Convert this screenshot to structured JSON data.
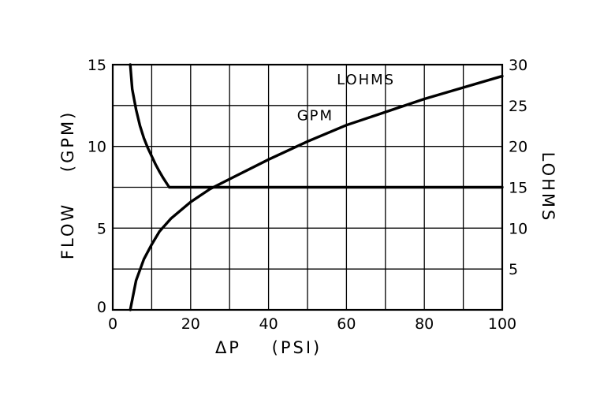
{
  "chart_data": {
    "type": "line",
    "xlabel": "ΔP    (PSI)",
    "ylabel": "FLOW    (GPM)",
    "y2label": "LOHMS",
    "xlim": [
      0,
      100
    ],
    "ylim": [
      0,
      15
    ],
    "y2lim": [
      0,
      30
    ],
    "x_ticks": [
      0,
      20,
      40,
      60,
      80,
      100
    ],
    "x_grid_step": 10,
    "y_ticks": [
      0,
      5,
      10,
      15
    ],
    "y_grid_step": 2.5,
    "y2_ticks": [
      5,
      10,
      15,
      20,
      25,
      30
    ],
    "grid": true,
    "series": [
      {
        "name": "GPM",
        "axis": "left",
        "x": [
          4.5,
          6,
          8,
          10,
          12,
          15,
          20,
          25,
          30,
          40,
          50,
          60,
          70,
          80,
          90,
          100
        ],
        "y": [
          0,
          1.8,
          3.1,
          4.0,
          4.8,
          5.6,
          6.6,
          7.4,
          8.0,
          9.2,
          10.3,
          11.3,
          12.1,
          12.9,
          13.6,
          14.3
        ]
      },
      {
        "name": "LOHMS",
        "axis": "right",
        "x": [
          4.5,
          5,
          6,
          7,
          8,
          9,
          10,
          11,
          12,
          13,
          14.5,
          20,
          40,
          60,
          80,
          100
        ],
        "y": [
          30,
          27,
          24.5,
          22.5,
          21,
          19.8,
          18.8,
          17.8,
          16.9,
          16.1,
          15,
          15,
          15,
          15,
          15,
          15
        ]
      }
    ],
    "annotations": [
      {
        "text": "GPM",
        "x": 52,
        "y": 11.6
      },
      {
        "text": "LOHMS",
        "x": 65,
        "y": 13.8
      }
    ]
  }
}
